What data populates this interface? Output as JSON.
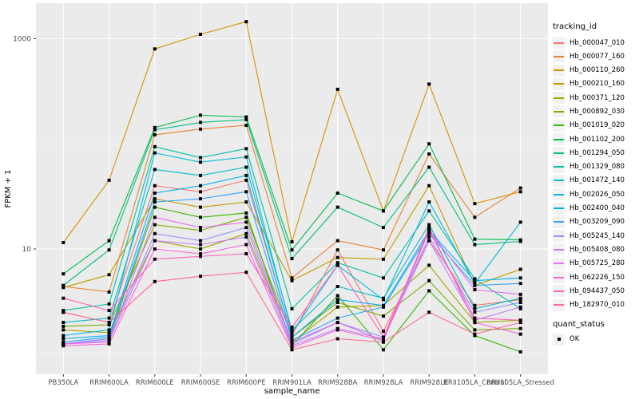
{
  "colors": {
    "background": "#FFFFFF",
    "panel_bg": "#EBEBEB",
    "grid": "#FFFFFF",
    "tick_mark": "#333333",
    "tick_label": "#4D4D4D",
    "axis_title": "#000000",
    "legend_key_bg": "#F2F2F2",
    "point": "#000000"
  },
  "legend": {
    "tracking_title": "tracking_id",
    "quant_title": "quant_status",
    "quant_items": [
      {
        "label": "OK"
      }
    ]
  },
  "chart_data": {
    "type": "line",
    "title": "",
    "xlabel": "sample_name",
    "ylabel": "FPKM + 1",
    "y_scale": "log10",
    "ylim": [
      0.65,
      2100
    ],
    "grid": true,
    "legend_position": "right",
    "y_ticks": [
      {
        "label": "10",
        "value": 10
      },
      {
        "label": "1000",
        "value": 1000
      }
    ],
    "y_minor": [
      1,
      100
    ],
    "categories": [
      "PB350LA",
      "RRIM600LA",
      "RRIM600LE",
      "RRIM600SE",
      "RRIM600PE",
      "RRIM901LA",
      "RRIM928BA",
      "RRIM928LA",
      "RRIM928LE",
      "RRII105LA_Control",
      "RRII105LA_Stressed"
    ],
    "series": [
      {
        "name": "Hb_000047_010",
        "color": "#F8766D",
        "values": [
          2.5,
          2.0,
          40,
          35,
          45,
          1.5,
          9.8,
          1.65,
          12,
          2.9,
          3.3
        ]
      },
      {
        "name": "Hb_000077_160",
        "color": "#EA8331",
        "values": [
          4.4,
          3.9,
          122,
          138,
          150,
          5.3,
          12,
          9.8,
          80,
          20,
          38
        ]
      },
      {
        "name": "Hb_000110_260",
        "color": "#D89000",
        "values": [
          11.5,
          45,
          800,
          1100,
          1450,
          11.7,
          330,
          23,
          370,
          27,
          35
        ]
      },
      {
        "name": "Hb_000210_160",
        "color": "#C09B00",
        "values": [
          4.3,
          5.7,
          30,
          25,
          28,
          5.0,
          8.3,
          8.0,
          40,
          4.5,
          6.4
        ]
      },
      {
        "name": "Hb_000371_120",
        "color": "#A3A500",
        "values": [
          1.7,
          1.6,
          12,
          10,
          14,
          1.3,
          2.8,
          2.9,
          7.0,
          2.0,
          2.1
        ]
      },
      {
        "name": "Hb_000892_030",
        "color": "#7CAE00",
        "values": [
          1.84,
          1.9,
          17,
          15,
          20,
          1.45,
          3.1,
          2.3,
          5.0,
          1.7,
          1.75
        ]
      },
      {
        "name": "Hb_001019_020",
        "color": "#39B600",
        "values": [
          1.25,
          1.4,
          25,
          20,
          22,
          1.2,
          3.6,
          1.1,
          4.0,
          1.5,
          1.05
        ]
      },
      {
        "name": "Hb_001102_200",
        "color": "#00BB4E",
        "values": [
          5.8,
          12,
          143,
          187,
          180,
          9.8,
          34,
          23,
          100,
          12.4,
          12.2
        ]
      },
      {
        "name": "Hb_001294_050",
        "color": "#00BF7D",
        "values": [
          4.5,
          9.8,
          136,
          160,
          170,
          8.1,
          25,
          16,
          60,
          11,
          11.8
        ]
      },
      {
        "name": "Hb_001329_080",
        "color": "#00C1A3",
        "values": [
          2.6,
          3.0,
          94,
          74,
          90,
          2.7,
          7.4,
          5.3,
          23,
          5.2,
          2.7
        ]
      },
      {
        "name": "Hb_001472_140",
        "color": "#00BFC4",
        "values": [
          2.0,
          2.2,
          57,
          50,
          60,
          1.7,
          4.4,
          3.4,
          17,
          2.7,
          3.4
        ]
      },
      {
        "name": "Hb_002026_050",
        "color": "#00BAE0",
        "values": [
          1.5,
          1.7,
          82,
          67,
          75,
          1.6,
          7.0,
          3.3,
          28,
          4.7,
          18
        ]
      },
      {
        "name": "Hb_002400_040",
        "color": "#00B0F6",
        "values": [
          1.4,
          1.5,
          34,
          40,
          50,
          1.45,
          3.3,
          2.9,
          15,
          5.0,
          5.3
        ]
      },
      {
        "name": "Hb_003209_090",
        "color": "#35A2FF",
        "values": [
          1.3,
          1.45,
          28,
          30,
          35,
          1.35,
          2.2,
          2.8,
          14,
          4.5,
          4.7
        ]
      },
      {
        "name": "Hb_005245_140",
        "color": "#9590FF",
        "values": [
          1.25,
          1.4,
          14,
          12,
          16,
          1.25,
          2.0,
          1.45,
          13,
          2.5,
          3.1
        ]
      },
      {
        "name": "Hb_005408_080",
        "color": "#C77CFF",
        "values": [
          1.25,
          1.35,
          12,
          11,
          13,
          1.2,
          1.75,
          1.4,
          12,
          2.1,
          2.8
        ]
      },
      {
        "name": "Hb_005725_280",
        "color": "#E76BF3",
        "values": [
          1.25,
          1.3,
          20,
          16,
          18,
          1.3,
          2.0,
          1.35,
          15,
          4.1,
          3.7
        ]
      },
      {
        "name": "Hb_062226_150",
        "color": "#FA62DB",
        "values": [
          1.2,
          1.25,
          10,
          9,
          11,
          1.15,
          1.7,
          1.35,
          16,
          2.0,
          1.55
        ]
      },
      {
        "name": "Hb_094437_050",
        "color": "#FF62BC",
        "values": [
          3.4,
          2.6,
          8.0,
          8.5,
          9.0,
          1.8,
          7.0,
          1.45,
          15,
          2.2,
          2.1
        ]
      },
      {
        "name": "Hb_182970_010",
        "color": "#FF6A98",
        "values": [
          2.5,
          2.0,
          4.9,
          5.5,
          6.0,
          1.1,
          1.4,
          1.3,
          2.5,
          1.55,
          2.0
        ]
      }
    ]
  }
}
